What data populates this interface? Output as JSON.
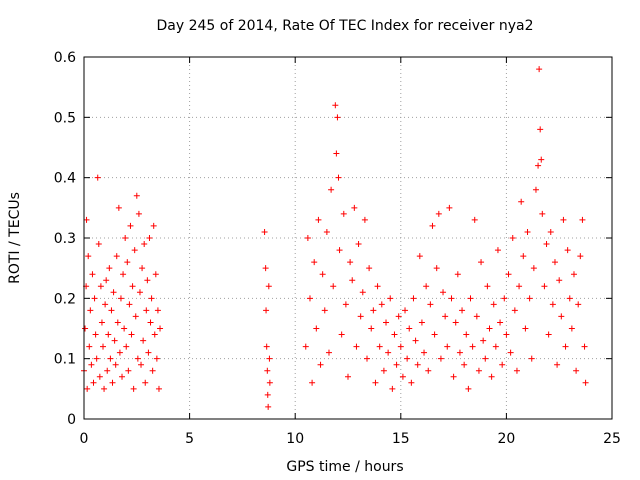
{
  "chart_data": {
    "type": "scatter",
    "title": "Day 245 of 2014, Rate Of TEC Index for receiver nya2",
    "xlabel": "GPS time / hours",
    "ylabel": "ROTI / TECUs",
    "xlim": [
      0,
      25
    ],
    "ylim": [
      0,
      0.6
    ],
    "xticks": [
      0,
      5,
      10,
      15,
      20,
      25
    ],
    "xtick_labels": [
      "0",
      "5",
      "10",
      "15",
      "20",
      "25"
    ],
    "yticks": [
      0,
      0.1,
      0.2,
      0.3,
      0.4,
      0.5,
      0.6
    ],
    "ytick_labels": [
      "0",
      "0.1",
      "0.2",
      "0.3",
      "0.4",
      "0.5",
      "0.6"
    ],
    "grid": true,
    "marker": "+",
    "series": [
      {
        "name": "ROTI",
        "color": "#ff0000",
        "points": [
          [
            0.0,
            0.08
          ],
          [
            0.05,
            0.15
          ],
          [
            0.1,
            0.22
          ],
          [
            0.12,
            0.33
          ],
          [
            0.15,
            0.05
          ],
          [
            0.2,
            0.27
          ],
          [
            0.25,
            0.12
          ],
          [
            0.3,
            0.18
          ],
          [
            0.35,
            0.09
          ],
          [
            0.4,
            0.24
          ],
          [
            0.45,
            0.06
          ],
          [
            0.5,
            0.2
          ],
          [
            0.55,
            0.14
          ],
          [
            0.6,
            0.1
          ],
          [
            0.65,
            0.4
          ],
          [
            0.7,
            0.29
          ],
          [
            0.75,
            0.07
          ],
          [
            0.8,
            0.22
          ],
          [
            0.85,
            0.16
          ],
          [
            0.9,
            0.12
          ],
          [
            0.95,
            0.05
          ],
          [
            1.0,
            0.19
          ],
          [
            1.05,
            0.23
          ],
          [
            1.1,
            0.08
          ],
          [
            1.15,
            0.14
          ],
          [
            1.2,
            0.25
          ],
          [
            1.25,
            0.1
          ],
          [
            1.3,
            0.18
          ],
          [
            1.35,
            0.06
          ],
          [
            1.4,
            0.21
          ],
          [
            1.45,
            0.13
          ],
          [
            1.5,
            0.09
          ],
          [
            1.55,
            0.27
          ],
          [
            1.6,
            0.16
          ],
          [
            1.65,
            0.35
          ],
          [
            1.7,
            0.11
          ],
          [
            1.75,
            0.2
          ],
          [
            1.8,
            0.07
          ],
          [
            1.85,
            0.24
          ],
          [
            1.9,
            0.15
          ],
          [
            1.95,
            0.3
          ],
          [
            2.0,
            0.12
          ],
          [
            2.05,
            0.26
          ],
          [
            2.1,
            0.08
          ],
          [
            2.15,
            0.19
          ],
          [
            2.2,
            0.32
          ],
          [
            2.25,
            0.14
          ],
          [
            2.3,
            0.22
          ],
          [
            2.35,
            0.05
          ],
          [
            2.4,
            0.28
          ],
          [
            2.45,
            0.17
          ],
          [
            2.5,
            0.37
          ],
          [
            2.55,
            0.1
          ],
          [
            2.6,
            0.34
          ],
          [
            2.65,
            0.21
          ],
          [
            2.7,
            0.09
          ],
          [
            2.75,
            0.25
          ],
          [
            2.8,
            0.13
          ],
          [
            2.85,
            0.29
          ],
          [
            2.9,
            0.06
          ],
          [
            2.95,
            0.18
          ],
          [
            3.0,
            0.23
          ],
          [
            3.05,
            0.11
          ],
          [
            3.1,
            0.3
          ],
          [
            3.15,
            0.16
          ],
          [
            3.2,
            0.2
          ],
          [
            3.25,
            0.08
          ],
          [
            3.3,
            0.32
          ],
          [
            3.35,
            0.14
          ],
          [
            3.4,
            0.24
          ],
          [
            3.45,
            0.1
          ],
          [
            3.5,
            0.18
          ],
          [
            3.55,
            0.05
          ],
          [
            3.6,
            0.15
          ],
          [
            8.55,
            0.31
          ],
          [
            8.6,
            0.25
          ],
          [
            8.62,
            0.18
          ],
          [
            8.65,
            0.12
          ],
          [
            8.68,
            0.08
          ],
          [
            8.7,
            0.04
          ],
          [
            8.72,
            0.02
          ],
          [
            8.75,
            0.22
          ],
          [
            8.78,
            0.1
          ],
          [
            8.8,
            0.06
          ],
          [
            10.5,
            0.12
          ],
          [
            10.6,
            0.3
          ],
          [
            10.7,
            0.2
          ],
          [
            10.8,
            0.06
          ],
          [
            10.9,
            0.26
          ],
          [
            11.0,
            0.15
          ],
          [
            11.1,
            0.33
          ],
          [
            11.2,
            0.09
          ],
          [
            11.3,
            0.24
          ],
          [
            11.4,
            0.18
          ],
          [
            11.5,
            0.31
          ],
          [
            11.6,
            0.11
          ],
          [
            11.7,
            0.38
          ],
          [
            11.8,
            0.22
          ],
          [
            11.9,
            0.52
          ],
          [
            11.95,
            0.44
          ],
          [
            12.0,
            0.5
          ],
          [
            12.05,
            0.4
          ],
          [
            12.1,
            0.28
          ],
          [
            12.2,
            0.14
          ],
          [
            12.3,
            0.34
          ],
          [
            12.4,
            0.19
          ],
          [
            12.5,
            0.07
          ],
          [
            12.6,
            0.26
          ],
          [
            12.7,
            0.23
          ],
          [
            12.8,
            0.35
          ],
          [
            12.9,
            0.12
          ],
          [
            13.0,
            0.29
          ],
          [
            13.1,
            0.17
          ],
          [
            13.2,
            0.21
          ],
          [
            13.3,
            0.33
          ],
          [
            13.4,
            0.1
          ],
          [
            13.5,
            0.25
          ],
          [
            13.6,
            0.15
          ],
          [
            13.7,
            0.18
          ],
          [
            13.8,
            0.06
          ],
          [
            13.9,
            0.22
          ],
          [
            14.0,
            0.12
          ],
          [
            14.1,
            0.19
          ],
          [
            14.2,
            0.08
          ],
          [
            14.3,
            0.16
          ],
          [
            14.4,
            0.11
          ],
          [
            14.5,
            0.2
          ],
          [
            14.6,
            0.05
          ],
          [
            14.7,
            0.14
          ],
          [
            14.8,
            0.09
          ],
          [
            14.9,
            0.17
          ],
          [
            15.0,
            0.12
          ],
          [
            15.1,
            0.07
          ],
          [
            15.2,
            0.18
          ],
          [
            15.3,
            0.1
          ],
          [
            15.4,
            0.15
          ],
          [
            15.5,
            0.06
          ],
          [
            15.6,
            0.2
          ],
          [
            15.7,
            0.13
          ],
          [
            15.8,
            0.09
          ],
          [
            15.9,
            0.27
          ],
          [
            16.0,
            0.16
          ],
          [
            16.1,
            0.11
          ],
          [
            16.2,
            0.22
          ],
          [
            16.3,
            0.08
          ],
          [
            16.4,
            0.19
          ],
          [
            16.5,
            0.32
          ],
          [
            16.6,
            0.14
          ],
          [
            16.7,
            0.25
          ],
          [
            16.8,
            0.34
          ],
          [
            16.9,
            0.1
          ],
          [
            17.0,
            0.21
          ],
          [
            17.1,
            0.17
          ],
          [
            17.2,
            0.12
          ],
          [
            17.3,
            0.35
          ],
          [
            17.4,
            0.2
          ],
          [
            17.5,
            0.07
          ],
          [
            17.6,
            0.16
          ],
          [
            17.7,
            0.24
          ],
          [
            17.8,
            0.11
          ],
          [
            17.9,
            0.18
          ],
          [
            18.0,
            0.09
          ],
          [
            18.1,
            0.14
          ],
          [
            18.2,
            0.05
          ],
          [
            18.3,
            0.2
          ],
          [
            18.4,
            0.12
          ],
          [
            18.5,
            0.33
          ],
          [
            18.6,
            0.17
          ],
          [
            18.7,
            0.08
          ],
          [
            18.8,
            0.26
          ],
          [
            18.9,
            0.13
          ],
          [
            19.0,
            0.1
          ],
          [
            19.1,
            0.22
          ],
          [
            19.2,
            0.15
          ],
          [
            19.3,
            0.07
          ],
          [
            19.4,
            0.19
          ],
          [
            19.5,
            0.12
          ],
          [
            19.6,
            0.28
          ],
          [
            19.7,
            0.16
          ],
          [
            19.8,
            0.09
          ],
          [
            19.9,
            0.2
          ],
          [
            20.0,
            0.14
          ],
          [
            20.1,
            0.24
          ],
          [
            20.2,
            0.11
          ],
          [
            20.3,
            0.3
          ],
          [
            20.4,
            0.18
          ],
          [
            20.5,
            0.08
          ],
          [
            20.6,
            0.22
          ],
          [
            20.7,
            0.36
          ],
          [
            20.8,
            0.27
          ],
          [
            20.9,
            0.15
          ],
          [
            21.0,
            0.31
          ],
          [
            21.1,
            0.2
          ],
          [
            21.2,
            0.1
          ],
          [
            21.3,
            0.25
          ],
          [
            21.4,
            0.38
          ],
          [
            21.5,
            0.42
          ],
          [
            21.55,
            0.58
          ],
          [
            21.6,
            0.48
          ],
          [
            21.65,
            0.43
          ],
          [
            21.7,
            0.34
          ],
          [
            21.8,
            0.22
          ],
          [
            21.9,
            0.29
          ],
          [
            22.0,
            0.14
          ],
          [
            22.1,
            0.31
          ],
          [
            22.2,
            0.19
          ],
          [
            22.3,
            0.26
          ],
          [
            22.4,
            0.09
          ],
          [
            22.5,
            0.23
          ],
          [
            22.6,
            0.17
          ],
          [
            22.7,
            0.33
          ],
          [
            22.8,
            0.12
          ],
          [
            22.9,
            0.28
          ],
          [
            23.0,
            0.2
          ],
          [
            23.1,
            0.15
          ],
          [
            23.2,
            0.24
          ],
          [
            23.3,
            0.08
          ],
          [
            23.4,
            0.19
          ],
          [
            23.5,
            0.27
          ],
          [
            23.6,
            0.33
          ],
          [
            23.7,
            0.12
          ],
          [
            23.75,
            0.06
          ]
        ]
      }
    ]
  }
}
